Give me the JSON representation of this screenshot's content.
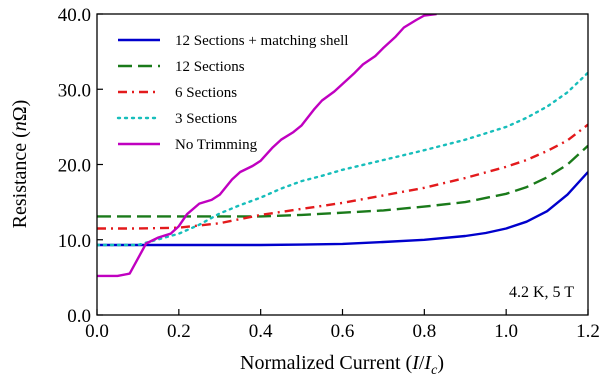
{
  "chart_data": {
    "type": "line",
    "xlabel": "Normalized Current (I/I_c)",
    "xlabel_parts": [
      "Normalized Current (",
      "I",
      "/",
      "I",
      "c",
      ")"
    ],
    "ylabel": "Resistance (nΩ)",
    "ylabel_parts": [
      "Resistance (",
      "n",
      "Ω",
      ")"
    ],
    "xlim": [
      0.0,
      1.2
    ],
    "ylim": [
      0.0,
      40.0
    ],
    "xticks": [
      0.0,
      0.2,
      0.4,
      0.6,
      0.8,
      1.0,
      1.2
    ],
    "xtick_labels": [
      "0.0",
      "0.2",
      "0.4",
      "0.6",
      "0.8",
      "1.0",
      "1.2"
    ],
    "yticks": [
      0.0,
      10.0,
      20.0,
      30.0,
      40.0
    ],
    "ytick_labels": [
      "0.0",
      "10.0",
      "20.0",
      "30.0",
      "40.0"
    ],
    "grid": false,
    "legend_position": "top-left",
    "annotation": "4.2 K, 5 T",
    "series": [
      {
        "name": "12 Sections + matching shell",
        "color": "#0000cc",
        "style": "solid",
        "x": [
          0.0,
          0.1,
          0.2,
          0.3,
          0.4,
          0.5,
          0.6,
          0.7,
          0.8,
          0.9,
          0.95,
          1.0,
          1.05,
          1.1,
          1.15,
          1.2
        ],
        "y": [
          9.3,
          9.3,
          9.3,
          9.3,
          9.3,
          9.35,
          9.45,
          9.7,
          10.0,
          10.5,
          10.9,
          11.5,
          12.4,
          13.8,
          16.0,
          19.0
        ]
      },
      {
        "name": "12 Sections",
        "color": "#1a7a1a",
        "style": "dashed",
        "x": [
          0.0,
          0.1,
          0.2,
          0.3,
          0.4,
          0.5,
          0.6,
          0.7,
          0.8,
          0.9,
          1.0,
          1.05,
          1.1,
          1.15,
          1.2
        ],
        "y": [
          13.1,
          13.1,
          13.1,
          13.1,
          13.1,
          13.3,
          13.6,
          13.9,
          14.4,
          15.0,
          16.1,
          17.0,
          18.3,
          20.0,
          22.5
        ]
      },
      {
        "name": "6 Sections",
        "color": "#e31a1c",
        "style": "dashdot",
        "x": [
          0.0,
          0.1,
          0.2,
          0.3,
          0.4,
          0.5,
          0.6,
          0.7,
          0.8,
          0.9,
          1.0,
          1.05,
          1.1,
          1.15,
          1.2
        ],
        "y": [
          11.5,
          11.5,
          11.6,
          12.2,
          13.3,
          14.1,
          14.9,
          15.9,
          16.9,
          18.2,
          19.7,
          20.6,
          21.8,
          23.2,
          25.3
        ]
      },
      {
        "name": "3 Sections",
        "color": "#17bebb",
        "style": "dotted",
        "x": [
          0.0,
          0.1,
          0.2,
          0.25,
          0.3,
          0.35,
          0.4,
          0.45,
          0.5,
          0.55,
          0.6,
          0.7,
          0.8,
          0.9,
          1.0,
          1.05,
          1.1,
          1.15,
          1.2
        ],
        "y": [
          9.3,
          9.3,
          10.8,
          12.0,
          13.5,
          14.6,
          15.6,
          16.8,
          17.8,
          18.5,
          19.3,
          20.6,
          21.9,
          23.3,
          25.0,
          26.2,
          27.7,
          29.6,
          32.2
        ]
      },
      {
        "name": "No Trimming",
        "color": "#c000c0",
        "style": "solid",
        "x": [
          0.0,
          0.05,
          0.08,
          0.1,
          0.12,
          0.15,
          0.18,
          0.2,
          0.22,
          0.25,
          0.28,
          0.3,
          0.33,
          0.35,
          0.38,
          0.4,
          0.43,
          0.45,
          0.48,
          0.5,
          0.53,
          0.55,
          0.58,
          0.6,
          0.63,
          0.65,
          0.68,
          0.7,
          0.73,
          0.75,
          0.78,
          0.8,
          0.83
        ],
        "y": [
          5.2,
          5.2,
          5.5,
          7.5,
          9.5,
          10.3,
          10.8,
          11.8,
          13.4,
          14.8,
          15.3,
          16.0,
          18.0,
          19.0,
          19.8,
          20.5,
          22.3,
          23.3,
          24.3,
          25.2,
          27.3,
          28.5,
          29.7,
          30.7,
          32.2,
          33.3,
          34.4,
          35.5,
          37.0,
          38.2,
          39.2,
          39.8,
          40.0
        ]
      }
    ]
  }
}
